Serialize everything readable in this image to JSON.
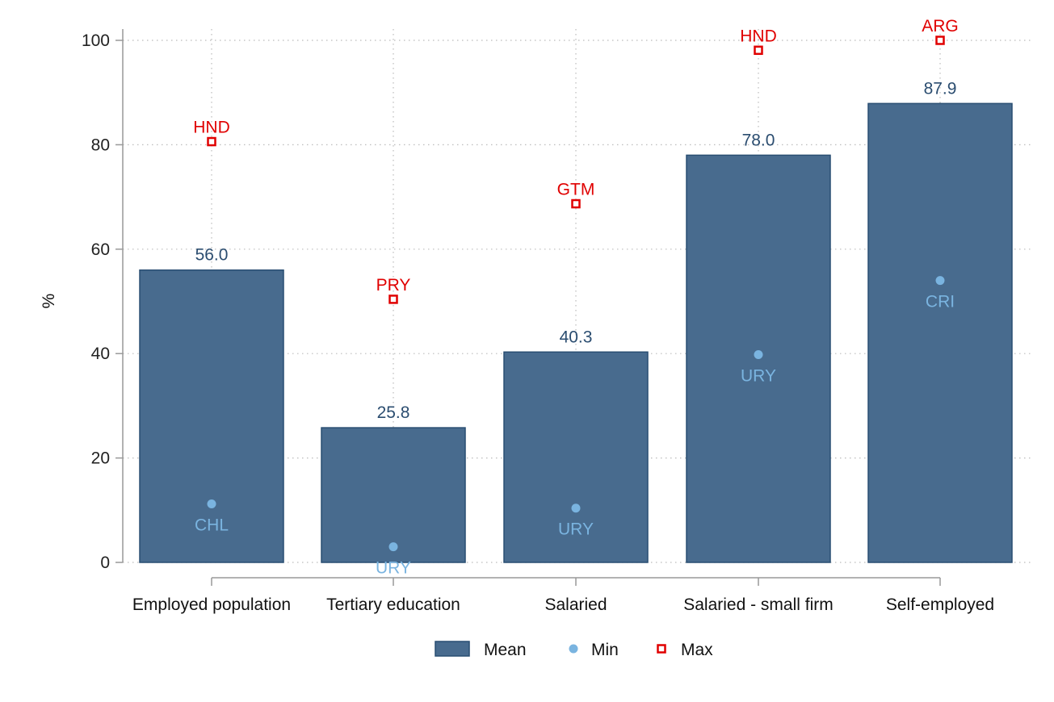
{
  "colors": {
    "mean": "#486b8e",
    "mean_border": "#294e72",
    "mean_label": "#2b4d70",
    "min": "#7ab4e0",
    "max": "#e00000",
    "grid": "#bbbbbb",
    "axis": "#999999"
  },
  "chart_data": {
    "type": "bar",
    "ylabel": "%",
    "ylim": [
      0,
      100
    ],
    "yticks": [
      0,
      20,
      40,
      60,
      80,
      100
    ],
    "grid": true,
    "legend_position": "bottom",
    "categories": [
      "Employed population",
      "Tertiary education",
      "Salaried",
      "Salaried - small firm",
      "Self-employed"
    ],
    "series": [
      {
        "name": "Mean",
        "values": [
          56.0,
          25.8,
          40.3,
          78.0,
          87.9
        ],
        "value_labels": [
          "56.0",
          "25.8",
          "40.3",
          "78.0",
          "87.9"
        ]
      },
      {
        "name": "Min",
        "values": [
          11.2,
          3.0,
          10.4,
          39.8,
          54.0
        ],
        "point_labels": [
          "CHL",
          "URY",
          "URY",
          "URY",
          "CRI"
        ]
      },
      {
        "name": "Max",
        "values": [
          80.6,
          50.4,
          68.7,
          98.1,
          100.0
        ],
        "point_labels": [
          "HND",
          "PRY",
          "GTM",
          "HND",
          "ARG"
        ]
      }
    ]
  }
}
